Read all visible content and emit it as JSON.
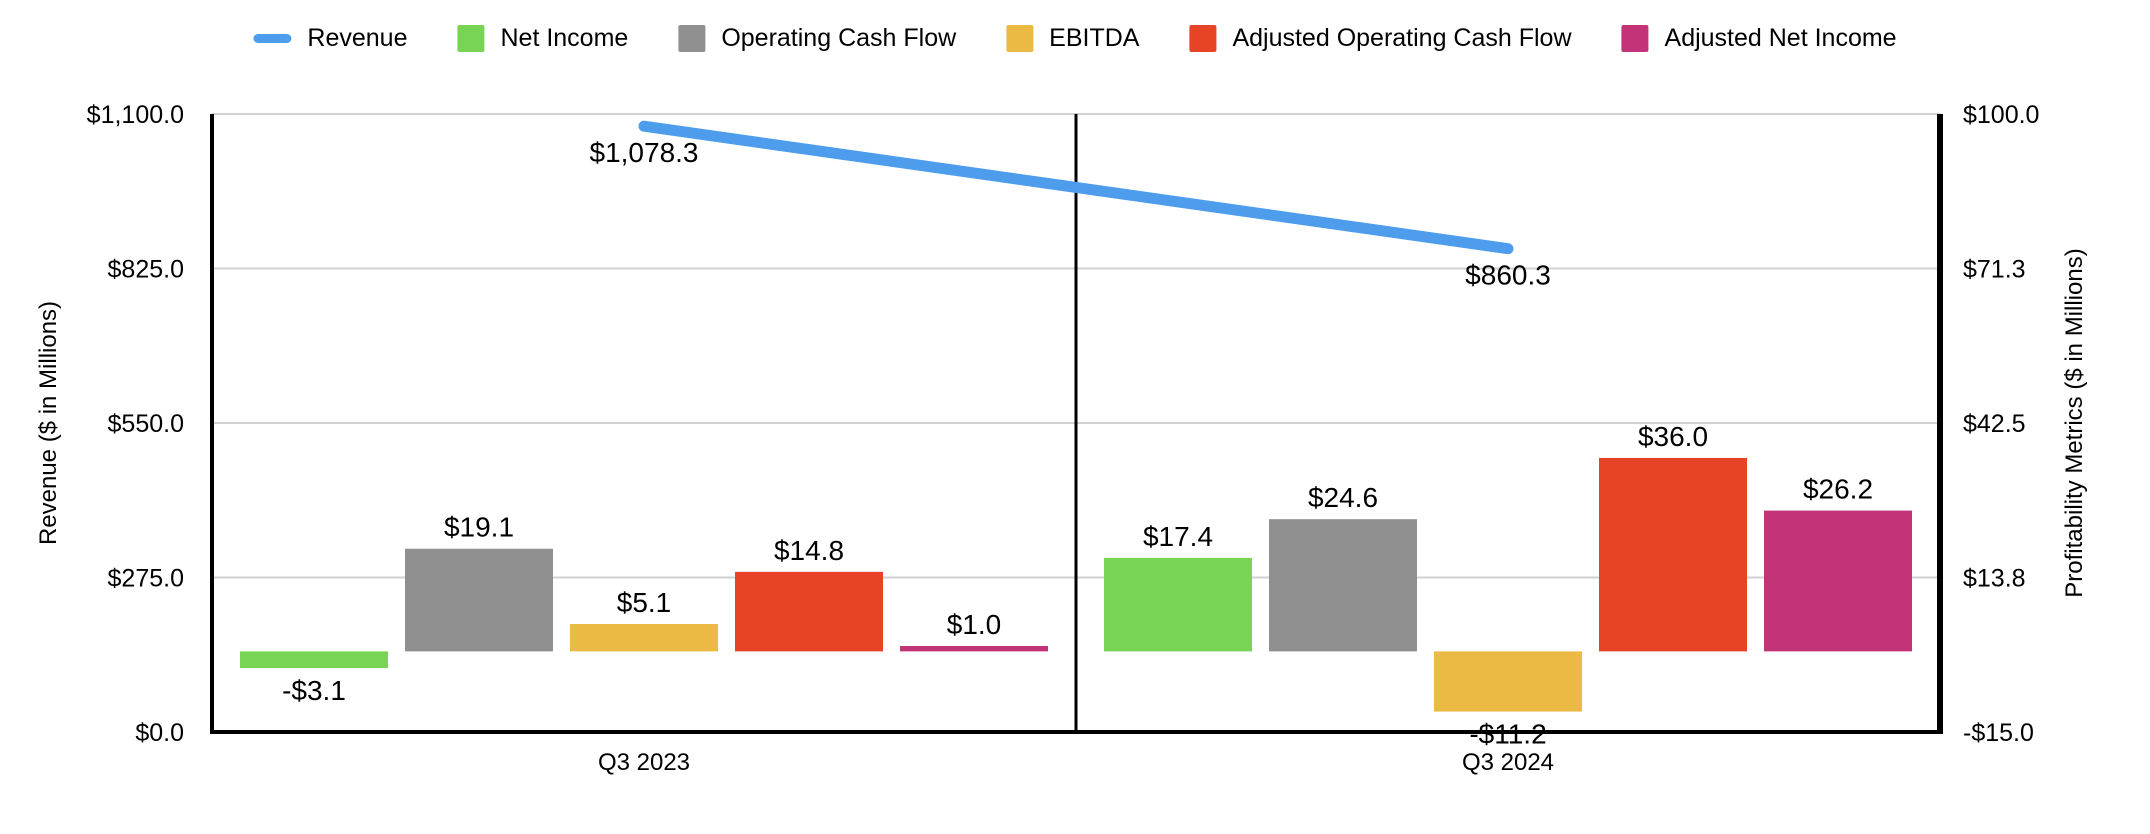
{
  "chart_data": {
    "type": "combo-bar-line",
    "categories": [
      "Q3 2023",
      "Q3 2024"
    ],
    "left_axis": {
      "title": "Revenue ($ in Millions)",
      "min": 0,
      "max": 1100,
      "ticks": [
        {
          "value": 0,
          "label": "$0.0"
        },
        {
          "value": 275,
          "label": "$275.0"
        },
        {
          "value": 550,
          "label": "$550.0"
        },
        {
          "value": 825,
          "label": "$825.0"
        },
        {
          "value": 1100,
          "label": "$1,100.0"
        }
      ]
    },
    "right_axis": {
      "title": "Profitability Metrics ($ in Millions)",
      "min": -15,
      "max": 100,
      "ticks": [
        {
          "value": -15,
          "label": "-$15.0"
        },
        {
          "value": 13.75,
          "label": "$13.8"
        },
        {
          "value": 42.5,
          "label": "$42.5"
        },
        {
          "value": 71.25,
          "label": "$71.3"
        },
        {
          "value": 100,
          "label": "$100.0"
        }
      ]
    },
    "line_series": {
      "name": "Revenue",
      "axis": "left",
      "color": "#4D9DEC",
      "values": [
        1078.3,
        860.3
      ],
      "labels": [
        "$1,078.3",
        "$860.3"
      ]
    },
    "bar_series": [
      {
        "name": "Net Income",
        "color": "#77D455",
        "values": [
          -3.1,
          17.4
        ],
        "labels": [
          "-$3.1",
          "$17.4"
        ]
      },
      {
        "name": "Operating Cash Flow",
        "color": "#909090",
        "values": [
          19.1,
          24.6
        ],
        "labels": [
          "$19.1",
          "$24.6"
        ]
      },
      {
        "name": "EBITDA",
        "color": "#EABA45",
        "values": [
          5.1,
          -11.2
        ],
        "labels": [
          "$5.1",
          "-$11.2"
        ]
      },
      {
        "name": "Adjusted Operating Cash Flow",
        "color": "#E74326",
        "values": [
          14.8,
          36.0
        ],
        "labels": [
          "$14.8",
          "$36.0"
        ]
      },
      {
        "name": "Adjusted Net Income",
        "color": "#C23378",
        "values": [
          1.0,
          26.2
        ],
        "labels": [
          "$1.0",
          "$26.2"
        ]
      }
    ],
    "grid": {
      "color": "#D2D2D2",
      "axis_color": "#000000"
    },
    "legend_position": "top"
  },
  "legend": {
    "items": [
      {
        "label": "Revenue",
        "color": "#4D9DEC",
        "swatch": "line"
      },
      {
        "label": "Net Income",
        "color": "#77D455",
        "swatch": "square"
      },
      {
        "label": "Operating Cash Flow",
        "color": "#909090",
        "swatch": "square"
      },
      {
        "label": "EBITDA",
        "color": "#EABA45",
        "swatch": "square"
      },
      {
        "label": "Adjusted Operating Cash Flow",
        "color": "#E74326",
        "swatch": "square"
      },
      {
        "label": "Adjusted Net Income",
        "color": "#C23378",
        "swatch": "square"
      }
    ]
  }
}
